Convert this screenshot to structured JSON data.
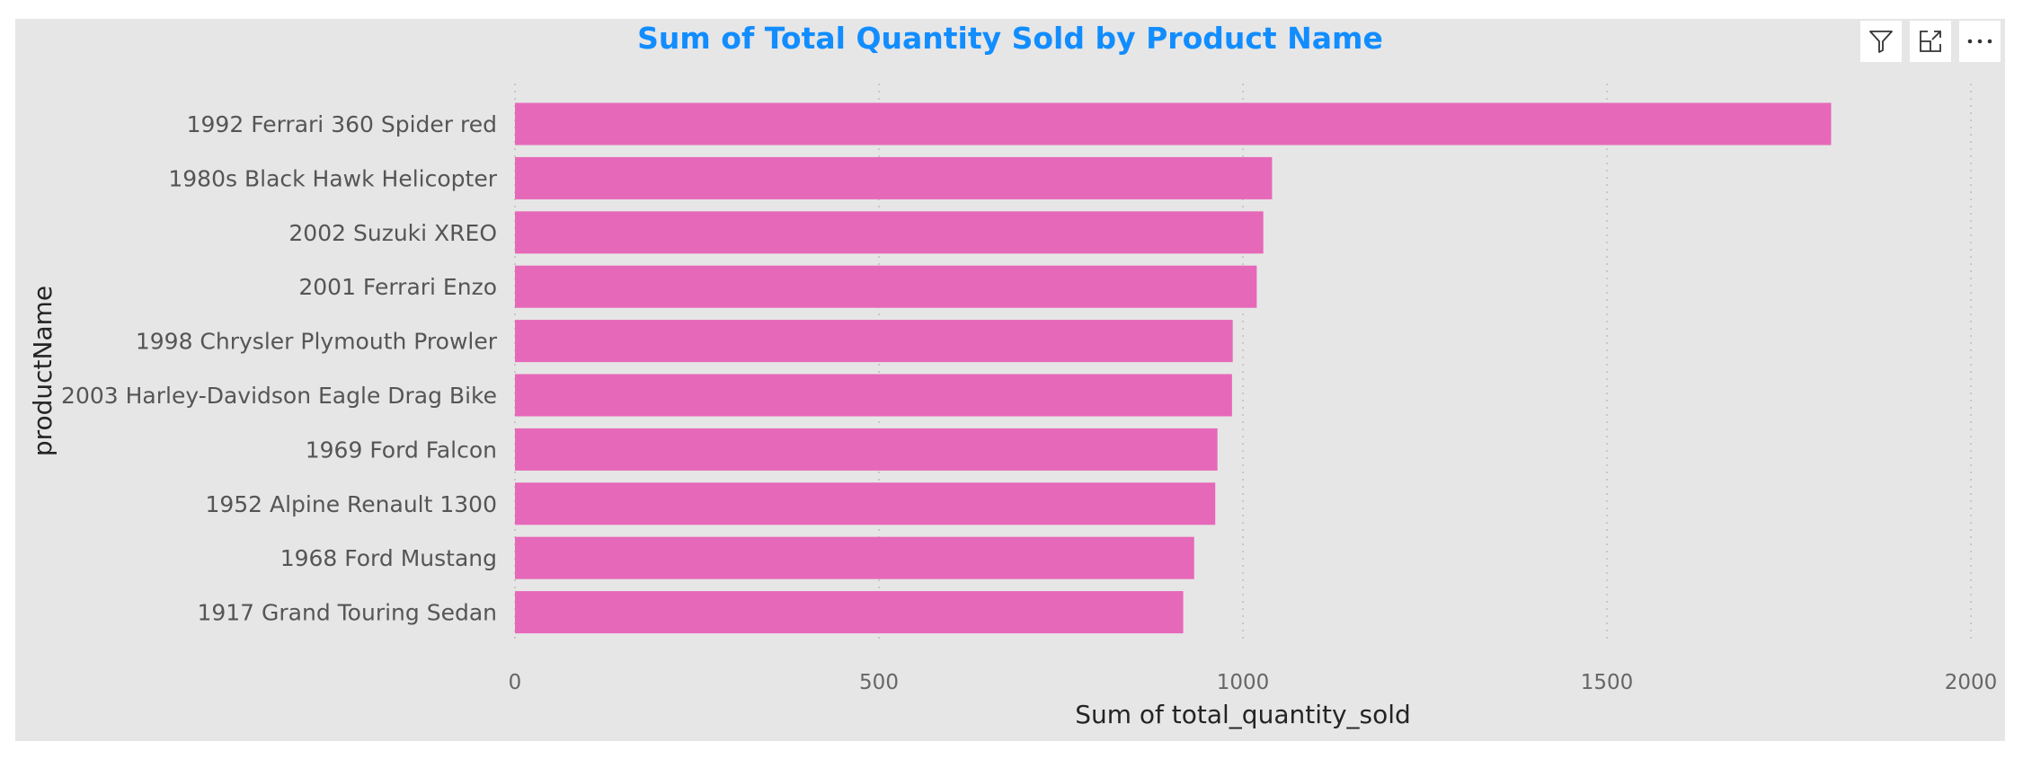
{
  "header": {
    "buttons": [
      {
        "name": "filter-icon"
      },
      {
        "name": "focus-mode-icon"
      },
      {
        "name": "more-options-icon"
      }
    ]
  },
  "chart_data": {
    "type": "bar",
    "orientation": "horizontal",
    "title": "Sum of Total Quantity Sold by Product Name",
    "xlabel": "Sum of total_quantity_sold",
    "ylabel": "productName",
    "categories": [
      "1992 Ferrari 360 Spider red",
      "1980s Black Hawk Helicopter",
      "2002 Suzuki XREO",
      "2001 Ferrari Enzo",
      "1998 Chrysler Plymouth Prowler",
      "2003 Harley-Davidson Eagle Drag Bike",
      "1969 Ford Falcon",
      "1952 Alpine Renault 1300",
      "1968 Ford Mustang",
      "1917 Grand Touring Sedan"
    ],
    "values": [
      1808,
      1040,
      1028,
      1019,
      986,
      985,
      965,
      962,
      933,
      918
    ],
    "xlim": [
      0,
      2000
    ],
    "xticks": [
      0,
      500,
      1000,
      1500,
      2000
    ],
    "xtick_labels": [
      "0",
      "500",
      "1000",
      "1500",
      "2000"
    ],
    "grid": true,
    "legend": "none",
    "colors": {
      "bar": "#e668b9",
      "title": "#118dff",
      "background": "#e6e6e6",
      "grid": "#c8c8c8"
    }
  }
}
